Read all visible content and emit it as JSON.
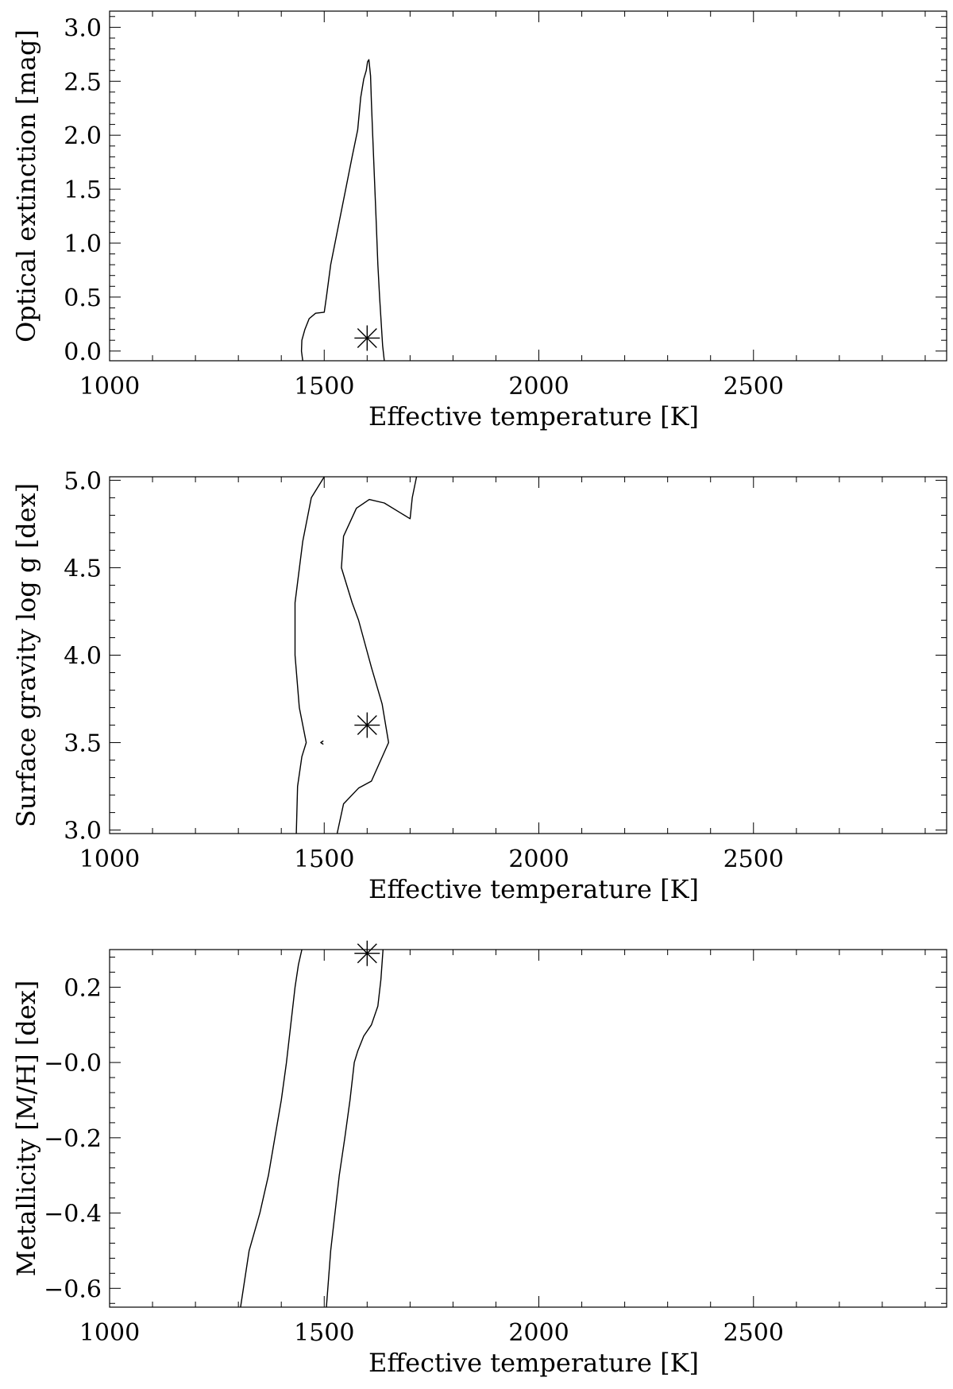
{
  "chart_data": [
    {
      "type": "line",
      "xlabel": "Effective temperature [K]",
      "ylabel": "Optical extinction [mag]",
      "xlim": [
        1000,
        2950
      ],
      "ylim": [
        -0.09,
        3.15
      ],
      "xticks": [
        1000,
        1500,
        2000,
        2500
      ],
      "xtick_labels": [
        "1000",
        "1500",
        "2000",
        "2500"
      ],
      "yticks": [
        0.0,
        0.5,
        1.0,
        1.5,
        2.0,
        2.5,
        3.0
      ],
      "ytick_labels": [
        "0.0",
        "0.5",
        "1.0",
        "1.5",
        "2.0",
        "2.5",
        "3.0"
      ],
      "contours": [
        {
          "x": [
            1450,
            1447,
            1448,
            1455,
            1465,
            1480,
            1500,
            1505,
            1510,
            1515,
            1525,
            1535,
            1550,
            1565,
            1578,
            1585,
            1592,
            1598,
            1601,
            1604,
            1608,
            1610,
            1613,
            1617,
            1621,
            1625,
            1629,
            1633,
            1636,
            1640
          ],
          "y": [
            -0.09,
            0.0,
            0.1,
            0.2,
            0.3,
            0.35,
            0.36,
            0.5,
            0.65,
            0.8,
            1.0,
            1.2,
            1.5,
            1.8,
            2.05,
            2.35,
            2.52,
            2.6,
            2.68,
            2.7,
            2.55,
            2.3,
            2.0,
            1.6,
            1.2,
            0.8,
            0.5,
            0.25,
            0.05,
            -0.09
          ]
        }
      ],
      "marker": {
        "x": 1600,
        "y": 0.12,
        "symbol": "asterisk"
      }
    },
    {
      "type": "line",
      "xlabel": "Effective temperature [K]",
      "ylabel": "Surface gravity log g [dex]",
      "xlim": [
        1000,
        2950
      ],
      "ylim": [
        2.98,
        5.02
      ],
      "xticks": [
        1000,
        1500,
        2000,
        2500
      ],
      "xtick_labels": [
        "1000",
        "1500",
        "2000",
        "2500"
      ],
      "yticks": [
        3.0,
        3.5,
        4.0,
        4.5,
        5.0
      ],
      "ytick_labels": [
        "3.0",
        "3.5",
        "4.0",
        "4.5",
        "5.0"
      ],
      "contours": [
        {
          "x": [
            1435,
            1438,
            1448,
            1458,
            1442,
            1432,
            1432,
            1450,
            1470,
            1500
          ],
          "y": [
            2.98,
            3.25,
            3.42,
            3.5,
            3.7,
            4.0,
            4.3,
            4.65,
            4.9,
            5.02
          ]
        },
        {
          "x": [
            1530,
            1545,
            1580,
            1610,
            1650,
            1635,
            1610,
            1580,
            1565,
            1540,
            1545,
            1575,
            1605,
            1640,
            1680,
            1700,
            1705,
            1715
          ],
          "y": [
            2.98,
            3.15,
            3.24,
            3.28,
            3.5,
            3.72,
            3.93,
            4.2,
            4.3,
            4.5,
            4.68,
            4.84,
            4.89,
            4.87,
            4.81,
            4.78,
            4.9,
            5.02
          ]
        },
        {
          "x": [
            1498,
            1492,
            1498
          ],
          "y": [
            3.49,
            3.5,
            3.51
          ]
        }
      ],
      "marker": {
        "x": 1600,
        "y": 3.6,
        "symbol": "asterisk"
      }
    },
    {
      "type": "line",
      "xlabel": "Effective temperature [K]",
      "ylabel": "Metallicity [M/H] [dex]",
      "xlim": [
        1000,
        2950
      ],
      "ylim": [
        -0.65,
        0.3
      ],
      "xticks": [
        1000,
        1500,
        2000,
        2500
      ],
      "xtick_labels": [
        "1000",
        "1500",
        "2000",
        "2500"
      ],
      "yticks": [
        0.2,
        0.0,
        -0.2,
        -0.4,
        -0.6
      ],
      "ytick_labels": [
        "0.2",
        "−0.0",
        "−0.2",
        "−0.4",
        "−0.6"
      ],
      "contours": [
        {
          "x": [
            1305,
            1325,
            1350,
            1370,
            1385,
            1400,
            1412,
            1422,
            1432,
            1440,
            1448
          ],
          "y": [
            -0.65,
            -0.5,
            -0.4,
            -0.3,
            -0.2,
            -0.1,
            0.0,
            0.1,
            0.2,
            0.26,
            0.3
          ]
        },
        {
          "x": [
            1505,
            1515,
            1525,
            1535,
            1548,
            1560,
            1570,
            1578,
            1592,
            1610,
            1625,
            1632,
            1637
          ],
          "y": [
            -0.65,
            -0.5,
            -0.4,
            -0.3,
            -0.2,
            -0.1,
            0.0,
            0.03,
            0.07,
            0.1,
            0.15,
            0.22,
            0.3
          ]
        }
      ],
      "marker": {
        "x": 1600,
        "y": 0.29,
        "symbol": "asterisk"
      }
    }
  ]
}
